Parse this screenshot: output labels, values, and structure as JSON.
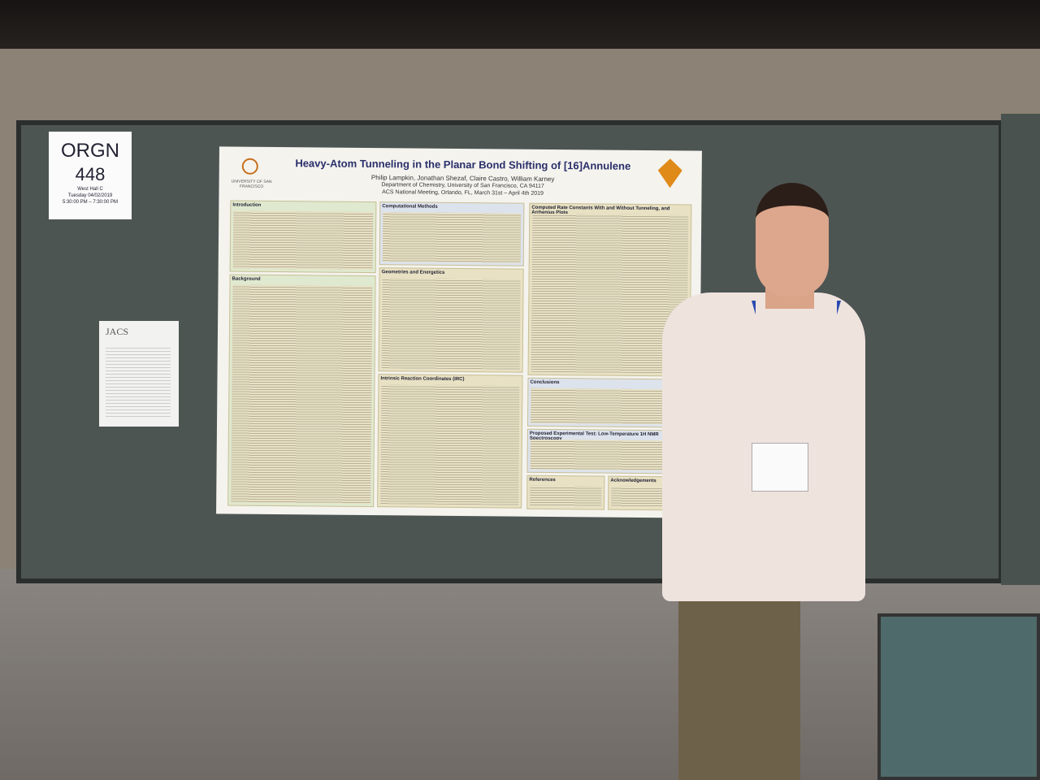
{
  "sign": {
    "code": "ORGN",
    "number": "448",
    "room": "West Hall C",
    "date": "Tuesday 04/02/2019",
    "time": "5:30:00 PM – 7:30:00 PM"
  },
  "poster": {
    "title": "Heavy-Atom Tunneling in the Planar Bond Shifting of [16]Annulene",
    "authors": "Philip Lampkin, Jonathan Shezaf, Claire Castro, William Karney",
    "affiliation": "Department of Chemistry, University of San Francisco, CA 94117",
    "meeting": "ACS National Meeting, Orlando, FL, March 31st – April 4th 2019",
    "university": "UNIVERSITY OF SAN FRANCISCO",
    "sections": [
      "Introduction",
      "Background",
      "Computational Methods",
      "Geometries and Energetics",
      "Intrinsic Reaction Coordinates (IRC)",
      "Computed Rate Constants With and Without Tunneling, and Arrhenius Plots",
      "Conclusions",
      "Proposed Experimental Test: Low-Temperature 1H NMR Spectroscopy",
      "References",
      "Acknowledgements"
    ]
  },
  "journal": {
    "title": "JACS"
  }
}
